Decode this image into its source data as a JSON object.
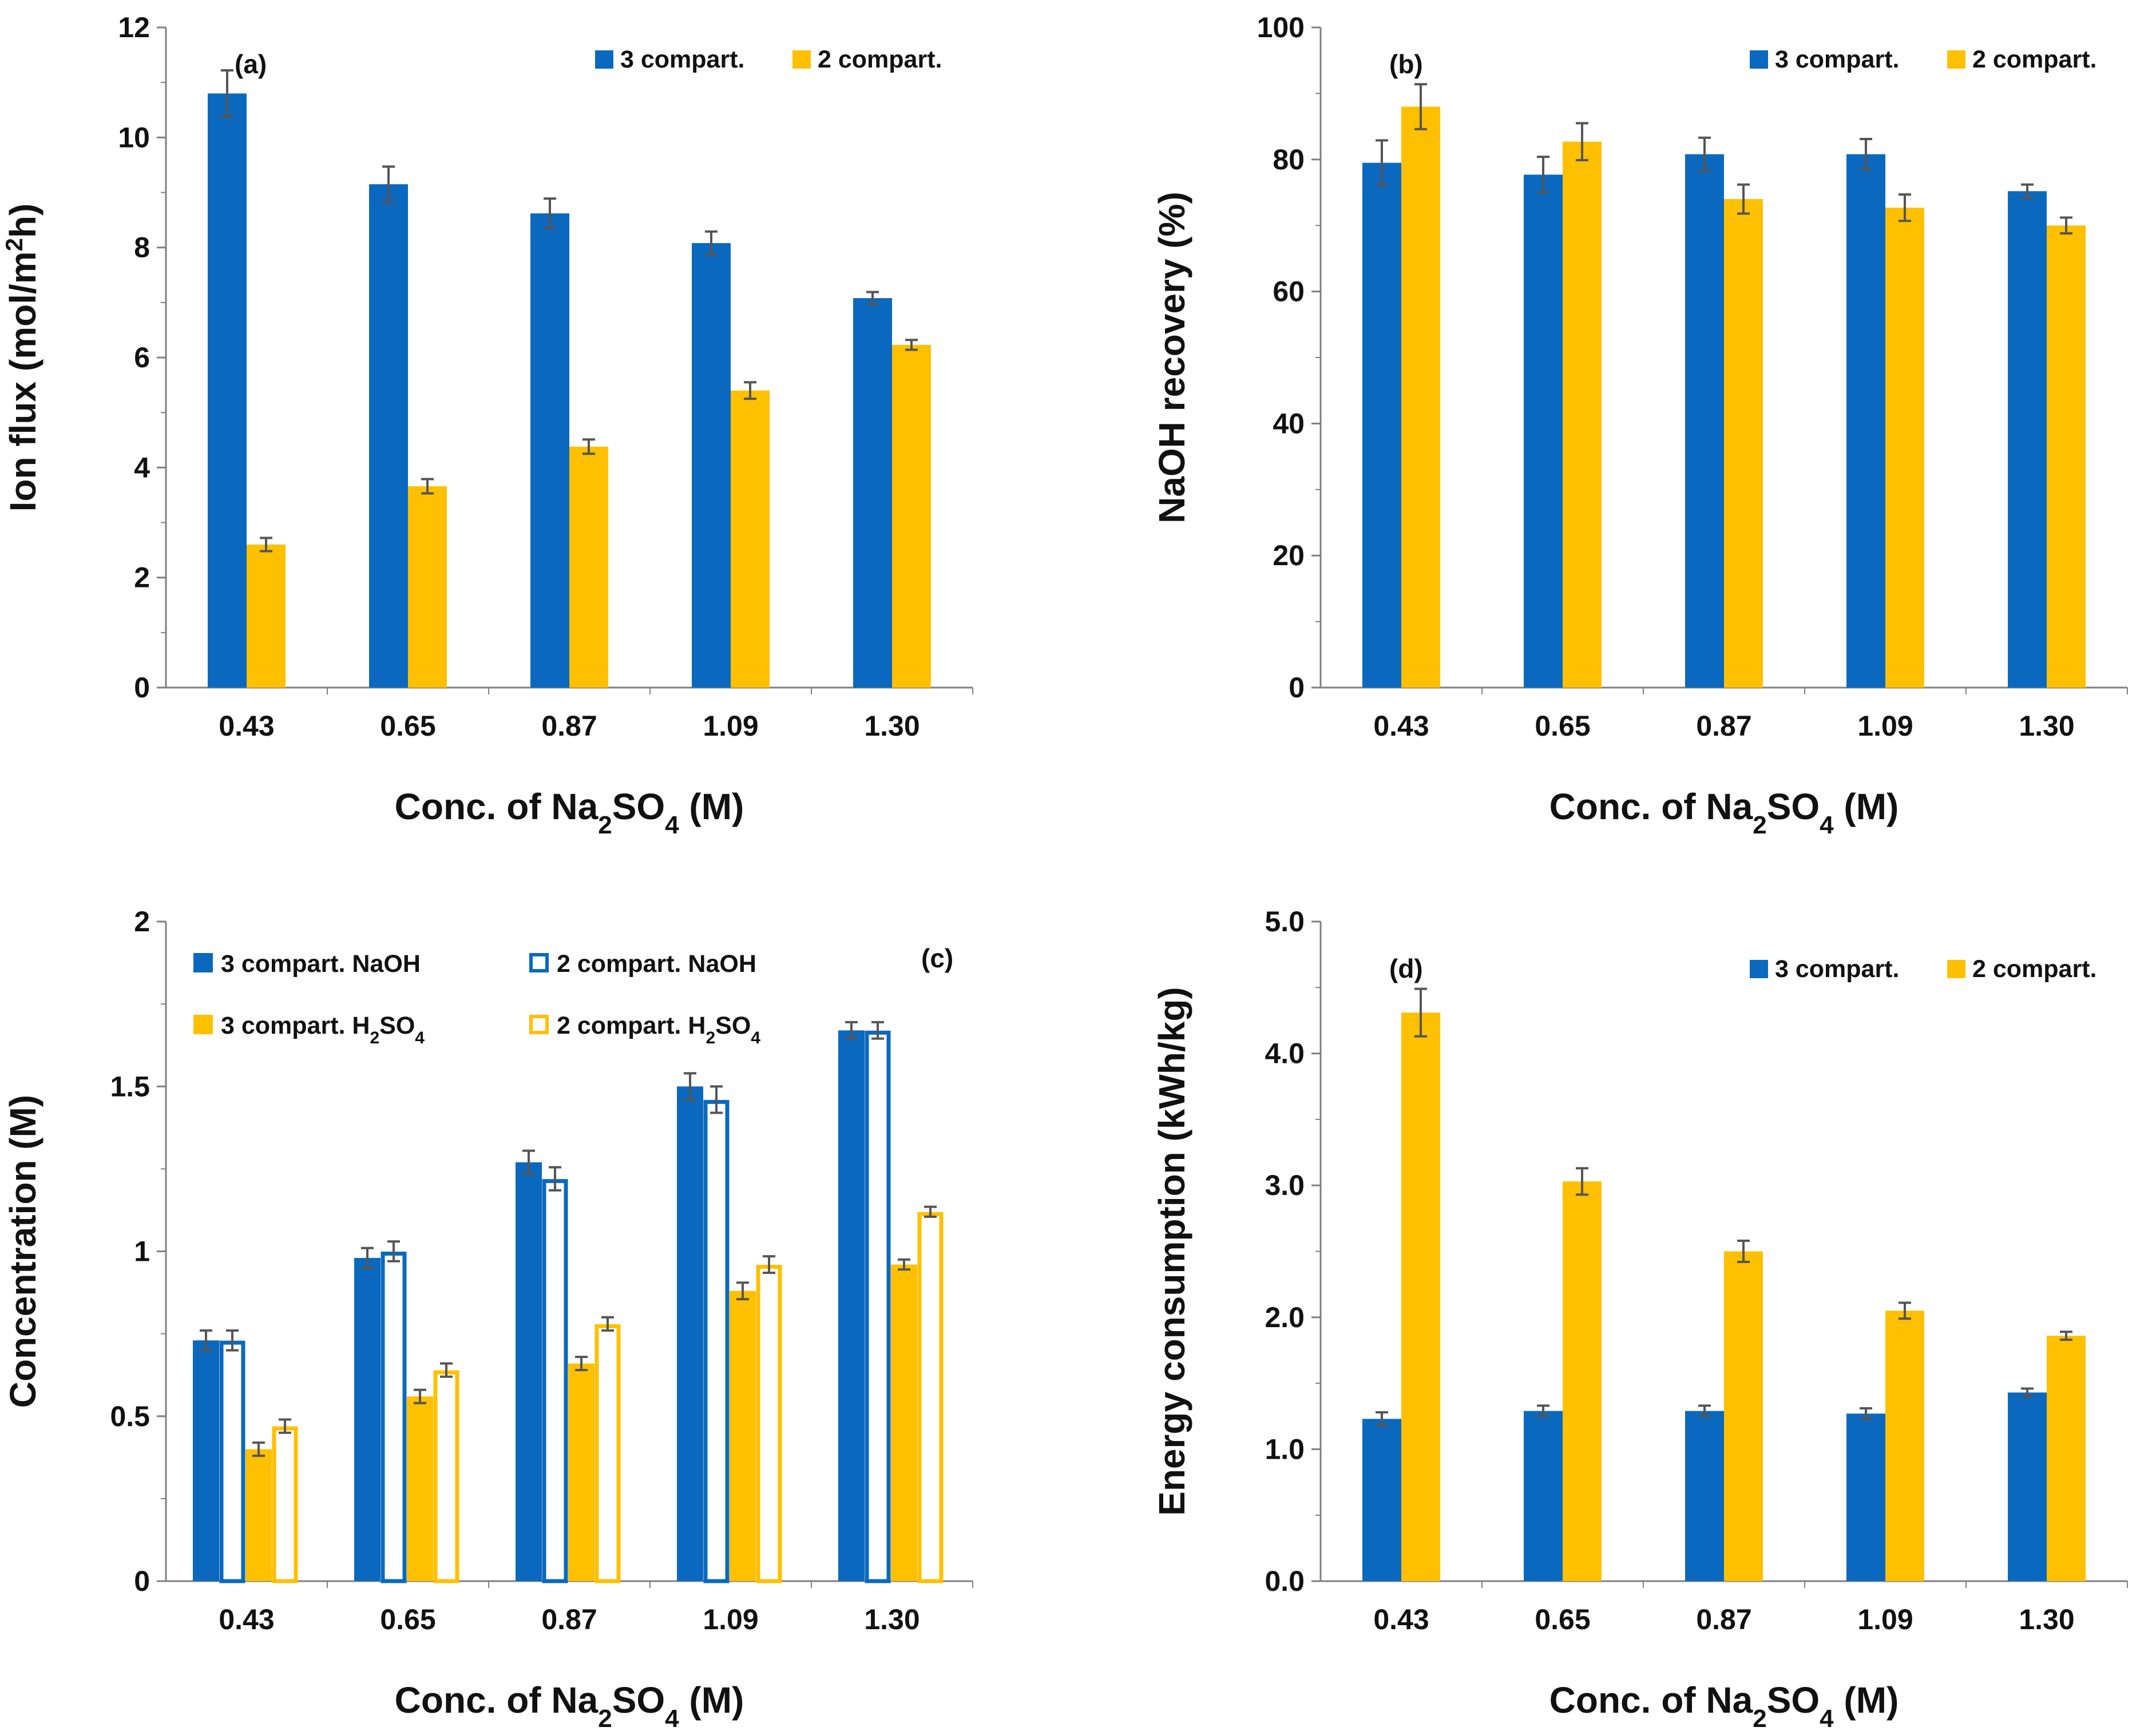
{
  "chart_data": [
    {
      "id": "a",
      "type": "bar",
      "panel_label": "(a)",
      "title": "",
      "categories": [
        "0.43",
        "0.65",
        "0.87",
        "1.09",
        "1.30"
      ],
      "series": [
        {
          "name": "3 compart.",
          "color": "#0a69be",
          "style": "filled",
          "values": [
            10.8,
            9.15,
            8.62,
            8.08,
            7.08
          ],
          "errors": [
            0.42,
            0.32,
            0.27,
            0.21,
            0.11
          ]
        },
        {
          "name": "2 compart.",
          "color": "#ffc000",
          "style": "filled",
          "values": [
            2.6,
            3.66,
            4.38,
            5.4,
            6.23
          ],
          "errors": [
            0.12,
            0.13,
            0.13,
            0.15,
            0.09
          ]
        }
      ],
      "xlabel": {
        "prefix": "Conc.  of  Na",
        "sub1": "2",
        "mid": "SO",
        "sub2": "4",
        "suffix": "  (M)"
      },
      "ylabel": "Ion flux (mol/m",
      "ylabel_sup": "2",
      "ylabel_end": "h)",
      "ylim": [
        0,
        12
      ],
      "yticks": [
        "0",
        "2",
        "4",
        "6",
        "8",
        "10",
        "12"
      ],
      "legend": "top-right"
    },
    {
      "id": "b",
      "type": "bar",
      "panel_label": "(b)",
      "title": "",
      "categories": [
        "0.43",
        "0.65",
        "0.87",
        "1.09",
        "1.30"
      ],
      "series": [
        {
          "name": "3 compart.",
          "color": "#0a69be",
          "style": "filled",
          "values": [
            79.5,
            77.7,
            80.8,
            80.8,
            75.2
          ],
          "errors": [
            3.4,
            2.7,
            2.5,
            2.3,
            1.0
          ]
        },
        {
          "name": "2 compart.",
          "color": "#ffc000",
          "style": "filled",
          "values": [
            88.0,
            82.7,
            74.0,
            72.7,
            70.0
          ],
          "errors": [
            3.4,
            2.8,
            2.2,
            2.0,
            1.2
          ]
        }
      ],
      "xlabel": {
        "prefix": "Conc.  of  Na",
        "sub1": "2",
        "mid": "SO",
        "sub2": "4",
        "suffix": "  (M)"
      },
      "ylabel": "NaOH recovery (%)",
      "ylabel_sup": "",
      "ylabel_end": "",
      "ylim": [
        0,
        100
      ],
      "yticks": [
        "0",
        "20",
        "40",
        "60",
        "80",
        "100"
      ],
      "legend": "top-right"
    },
    {
      "id": "c",
      "type": "bar",
      "panel_label": "(c)",
      "title": "",
      "categories": [
        "0.43",
        "0.65",
        "0.87",
        "1.09",
        "1.30"
      ],
      "series": [
        {
          "name": "3 compart. NaOH",
          "color": "#0a69be",
          "style": "filled",
          "values": [
            0.73,
            0.98,
            1.27,
            1.5,
            1.67
          ],
          "errors": [
            0.03,
            0.03,
            0.035,
            0.04,
            0.025
          ]
        },
        {
          "name": "2 compart. NaOH",
          "color": "#0a69be",
          "style": "open",
          "values": [
            0.73,
            1.0,
            1.22,
            1.46,
            1.67
          ],
          "errors": [
            0.03,
            0.03,
            0.035,
            0.04,
            0.025
          ]
        },
        {
          "name": "3 compart. H2SO4",
          "name_base": "3 compart. H",
          "name_sub": "2",
          "name_end": "SO",
          "name_sub2": "4",
          "color": "#ffc000",
          "style": "filled",
          "values": [
            0.4,
            0.56,
            0.66,
            0.88,
            0.96
          ],
          "errors": [
            0.02,
            0.02,
            0.02,
            0.025,
            0.015
          ]
        },
        {
          "name": "2 compart. H2SO4",
          "name_base": "2 compart. H",
          "name_sub": "2",
          "name_end": "SO",
          "name_sub2": "4",
          "color": "#ffc000",
          "style": "open",
          "values": [
            0.47,
            0.64,
            0.78,
            0.96,
            1.12
          ],
          "errors": [
            0.02,
            0.02,
            0.02,
            0.025,
            0.015
          ]
        }
      ],
      "xlabel": {
        "prefix": "Conc.  of  Na",
        "sub1": "2",
        "mid": "SO",
        "sub2": "4",
        "suffix": "  (M)"
      },
      "ylabel": "Concentration (M)",
      "ylabel_sup": "",
      "ylabel_end": "",
      "ylim": [
        0,
        2
      ],
      "yticks": [
        "0",
        "0.5",
        "1",
        "1.5",
        "2"
      ],
      "legend": "top"
    },
    {
      "id": "d",
      "type": "bar",
      "panel_label": "(d)",
      "title": "",
      "categories": [
        "0.43",
        "0.65",
        "0.87",
        "1.09",
        "1.30"
      ],
      "series": [
        {
          "name": "3 compart.",
          "color": "#0a69be",
          "style": "filled",
          "values": [
            1.23,
            1.29,
            1.29,
            1.27,
            1.43
          ],
          "errors": [
            0.05,
            0.04,
            0.04,
            0.04,
            0.03
          ]
        },
        {
          "name": "2 compart.",
          "color": "#ffc000",
          "style": "filled",
          "values": [
            4.31,
            3.03,
            2.5,
            2.05,
            1.86
          ],
          "errors": [
            0.18,
            0.1,
            0.08,
            0.06,
            0.03
          ]
        }
      ],
      "xlabel": {
        "prefix": "Conc.  of  Na",
        "sub1": "2",
        "mid": "SO",
        "sub2": "4",
        "suffix": "  (M)"
      },
      "ylabel": "Energy consumption (kWh/kg)",
      "ylabel_sup": "",
      "ylabel_end": "",
      "ylim": [
        0,
        5
      ],
      "yticks": [
        "0.0",
        "1.0",
        "2.0",
        "3.0",
        "4.0",
        "5.0"
      ],
      "legend": "top-right"
    }
  ]
}
